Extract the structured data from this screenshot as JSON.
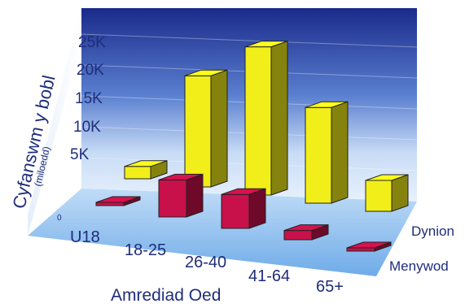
{
  "chart_data": {
    "type": "bar",
    "ylabel": "Cyfanswm y bobl",
    "ylabel_sub": "(miloedd)",
    "xlabel": "Amrediad Oed",
    "zero_label": "0",
    "y_ticks": [
      "25K",
      "20K",
      "15K",
      "10K",
      "5K"
    ],
    "y_tick_values": [
      25000,
      20000,
      15000,
      10000,
      5000
    ],
    "ylim": [
      0,
      25000
    ],
    "categories": [
      "U18",
      "18-25",
      "26-40",
      "41-64",
      "65+"
    ],
    "series": [
      {
        "name": "Menywod",
        "color": "#c8104a",
        "values": [
          500,
          6000,
          5500,
          1500,
          400
        ]
      },
      {
        "name": "Dynion",
        "color": "#f2ee1a",
        "values": [
          2000,
          18000,
          24000,
          15500,
          5000
        ]
      }
    ],
    "grid": true,
    "style": "3d",
    "colors": {
      "wall": "#20308f",
      "floor": "#7fb8ee",
      "text": "#1f2d7a"
    }
  }
}
